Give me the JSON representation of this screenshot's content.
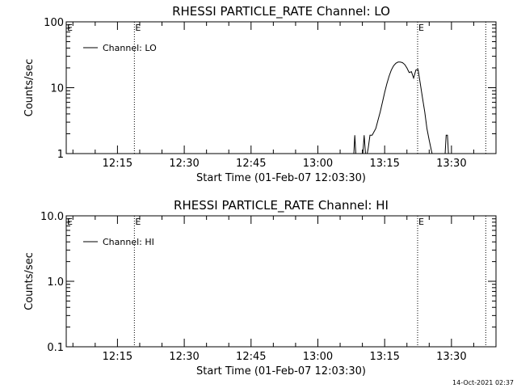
{
  "footer": {
    "timestamp": "14-Oct-2021 02:37"
  },
  "chart_data": [
    {
      "type": "line",
      "title": "RHESSI PARTICLE_RATE Channel: LO",
      "xlabel": "Start Time (01-Feb-07 12:03:30)",
      "ylabel": "Counts/sec",
      "y_scale": "log",
      "ylim": [
        1,
        100
      ],
      "xlim_minutes": [
        3.5,
        100
      ],
      "x_ticks": [
        {
          "label": "12:15",
          "minutes": 15
        },
        {
          "label": "12:30",
          "minutes": 30
        },
        {
          "label": "12:45",
          "minutes": 45
        },
        {
          "label": "13:00",
          "minutes": 60
        },
        {
          "label": "13:15",
          "minutes": 75
        },
        {
          "label": "13:30",
          "minutes": 90
        }
      ],
      "y_ticks": [
        {
          "label": "1",
          "value": 1
        },
        {
          "label": "10",
          "value": 10
        },
        {
          "label": "100",
          "value": 100
        }
      ],
      "legend": {
        "position": "top-left",
        "label": "Channel: LO"
      },
      "event_markers": [
        {
          "minutes": 18.8,
          "label": "E"
        },
        {
          "minutes": 82.4,
          "label": "E"
        },
        {
          "minutes": 97.7,
          "label": ""
        }
      ],
      "series": [
        {
          "name": "Channel: LO",
          "x": [
            68,
            68.3,
            68.6,
            70,
            70.4,
            70.8,
            71.3,
            71.7,
            72.2,
            73,
            73.5,
            74,
            74.5,
            75,
            75.5,
            76,
            76.5,
            77,
            77.5,
            78,
            78.5,
            79,
            79.5,
            80,
            80.5,
            81,
            81.5,
            82,
            82.5,
            83,
            83.5,
            84,
            84.5,
            85,
            85.5,
            86,
            86.5,
            87,
            88.5,
            88.8,
            89.1,
            89.4
          ],
          "y": [
            0.8,
            1.9,
            0.8,
            0.8,
            1.9,
            0.8,
            1.2,
            1.9,
            1.9,
            2.4,
            3.2,
            4.3,
            6.0,
            8.5,
            11.5,
            15.0,
            18.5,
            21.5,
            23.5,
            24.5,
            24.5,
            24.0,
            22.5,
            20.0,
            17.0,
            17.5,
            14.0,
            18.5,
            19.0,
            11.5,
            7.0,
            4.3,
            2.4,
            1.6,
            1.1,
            0.8,
            0.8,
            0.8,
            0.8,
            1.9,
            1.9,
            0.8
          ]
        }
      ]
    },
    {
      "type": "line",
      "title": "RHESSI PARTICLE_RATE Channel: HI",
      "xlabel": "Start Time (01-Feb-07 12:03:30)",
      "ylabel": "Counts/sec",
      "y_scale": "log",
      "ylim": [
        0.1,
        10
      ],
      "xlim_minutes": [
        3.5,
        100
      ],
      "x_ticks": [
        {
          "label": "12:15",
          "minutes": 15
        },
        {
          "label": "12:30",
          "minutes": 30
        },
        {
          "label": "12:45",
          "minutes": 45
        },
        {
          "label": "13:00",
          "minutes": 60
        },
        {
          "label": "13:15",
          "minutes": 75
        },
        {
          "label": "13:30",
          "minutes": 90
        }
      ],
      "y_ticks": [
        {
          "label": "0.1",
          "value": 0.1
        },
        {
          "label": "1.0",
          "value": 1
        },
        {
          "label": "10.0",
          "value": 10
        }
      ],
      "legend": {
        "position": "top-left",
        "label": "Channel: HI"
      },
      "event_markers": [
        {
          "minutes": 18.8,
          "label": "E"
        },
        {
          "minutes": 82.4,
          "label": "E"
        },
        {
          "minutes": 97.7,
          "label": ""
        }
      ],
      "series": [
        {
          "name": "Channel: HI",
          "x": [],
          "y": []
        }
      ]
    }
  ]
}
